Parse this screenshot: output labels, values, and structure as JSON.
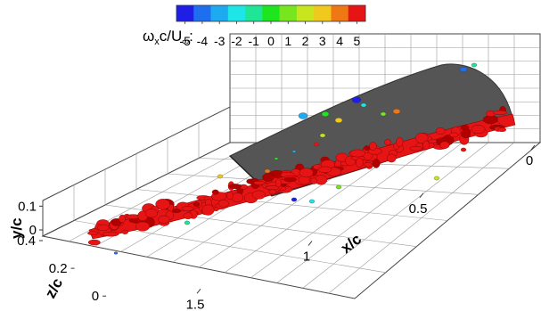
{
  "chart_data": {
    "type": "3d-isosurface",
    "colorbar": {
      "title_parts": [
        "ω",
        "x",
        "c/U",
        "∞",
        ":"
      ],
      "levels": [
        -5,
        -4,
        -3,
        -2,
        -1,
        0,
        1,
        2,
        3,
        4,
        5
      ],
      "tick_labels": [
        "-5",
        "-4",
        "-3",
        "-2",
        "-1",
        "0",
        "1",
        "2",
        "3",
        "4",
        "5"
      ],
      "colors": [
        "#1e1ee6",
        "#1e6ef0",
        "#1eaaf0",
        "#1ee6e6",
        "#1ee696",
        "#1ee61e",
        "#78e61e",
        "#c8e61e",
        "#f0c81e",
        "#f07814",
        "#e61414"
      ]
    },
    "x_axis": {
      "label": "x/c",
      "ticks": [
        0,
        0.5,
        1,
        1.5
      ],
      "tick_labels": [
        "0",
        "0.5",
        "1",
        "1.5"
      ]
    },
    "y_axis": {
      "label": "y/c",
      "ticks": [
        0,
        0.1
      ],
      "tick_labels": [
        "0",
        "0.1"
      ]
    },
    "z_axis": {
      "label": "z/c",
      "ticks": [
        0,
        0.2,
        0.4
      ],
      "tick_labels": [
        "0",
        "0.2",
        "0.4"
      ]
    },
    "grid": true,
    "surfaces": {
      "airfoil_color": "#555555",
      "wake_color": "#e61414"
    }
  }
}
